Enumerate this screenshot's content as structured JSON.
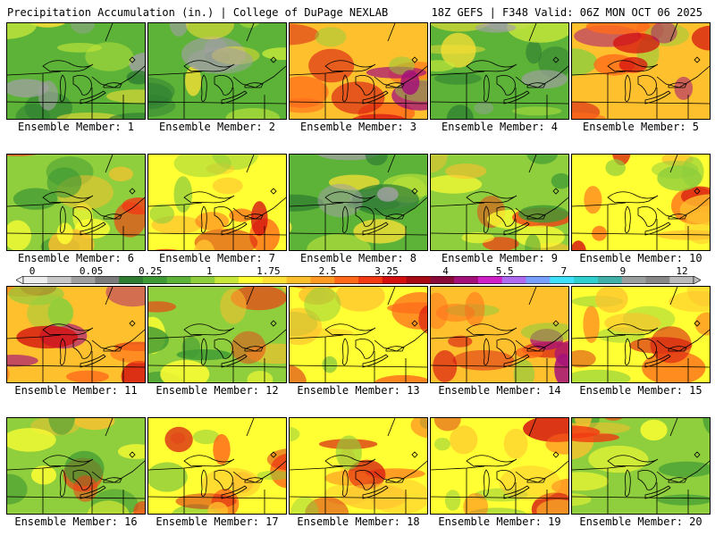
{
  "header": {
    "left": "Precipitation Accumulation (in.) | College of DuPage NEXLAB",
    "right": "18Z GEFS | F348 Valid: 06Z MON OCT 06 2025"
  },
  "members": [
    {
      "caption": "Ensemble Member: 1",
      "theme": "green"
    },
    {
      "caption": "Ensemble Member: 2",
      "theme": "green"
    },
    {
      "caption": "Ensemble Member: 3",
      "theme": "wet"
    },
    {
      "caption": "Ensemble Member: 4",
      "theme": "green"
    },
    {
      "caption": "Ensemble Member: 5",
      "theme": "wet"
    },
    {
      "caption": "Ensemble Member: 6",
      "theme": "mid"
    },
    {
      "caption": "Ensemble Member: 7",
      "theme": "yellow"
    },
    {
      "caption": "Ensemble Member: 8",
      "theme": "green"
    },
    {
      "caption": "Ensemble Member: 9",
      "theme": "mid"
    },
    {
      "caption": "Ensemble Member: 10",
      "theme": "yellow"
    },
    {
      "caption": "Ensemble Member: 11",
      "theme": "wet"
    },
    {
      "caption": "Ensemble Member: 12",
      "theme": "mid"
    },
    {
      "caption": "Ensemble Member: 13",
      "theme": "yellow"
    },
    {
      "caption": "Ensemble Member: 14",
      "theme": "wet"
    },
    {
      "caption": "Ensemble Member: 15",
      "theme": "yellow"
    },
    {
      "caption": "Ensemble Member: 16",
      "theme": "mid"
    },
    {
      "caption": "Ensemble Member: 17",
      "theme": "yellow"
    },
    {
      "caption": "Ensemble Member: 18",
      "theme": "yellow"
    },
    {
      "caption": "Ensemble Member: 19",
      "theme": "yellow"
    },
    {
      "caption": "Ensemble Member: 20",
      "theme": "mid"
    }
  ],
  "colorbar": {
    "labels": [
      "0",
      "0.05",
      "0.25",
      "1",
      "1.75",
      "2.5",
      "3.25",
      "4",
      "5.5",
      "7",
      "9",
      "12"
    ],
    "colors": [
      "#eeeeee",
      "#c8c8c8",
      "#a0a0a0",
      "#7c7c7c",
      "#2e7d32",
      "#3f9a35",
      "#5cb338",
      "#8fce3c",
      "#c7e83a",
      "#ffff33",
      "#ffe135",
      "#ffc02e",
      "#ff9a24",
      "#ff6a1a",
      "#f23a14",
      "#d41010",
      "#aa0a14",
      "#8a0a3a",
      "#a4107a",
      "#d020c8",
      "#b06cf0",
      "#7aa0ff",
      "#40e0ff",
      "#30d0d0",
      "#40b0a8",
      "#9aa0a0",
      "#888888",
      "#bbbbbb"
    ]
  },
  "themes": {
    "green": {
      "base": "#5cb338",
      "c1": "#2e7d32",
      "c2": "#a0a0a0",
      "c3": "#c7e83a",
      "c4": "#ffe135"
    },
    "mid": {
      "base": "#8fce3c",
      "c1": "#3f9a35",
      "c2": "#ffff33",
      "c3": "#ffc02e",
      "c4": "#f23a14"
    },
    "yellow": {
      "base": "#ffff33",
      "c1": "#ffc02e",
      "c2": "#8fce3c",
      "c3": "#ff6a1a",
      "c4": "#d41010"
    },
    "wet": {
      "base": "#ffc02e",
      "c1": "#ff6a1a",
      "c2": "#d41010",
      "c3": "#a4107a",
      "c4": "#8fce3c"
    }
  }
}
